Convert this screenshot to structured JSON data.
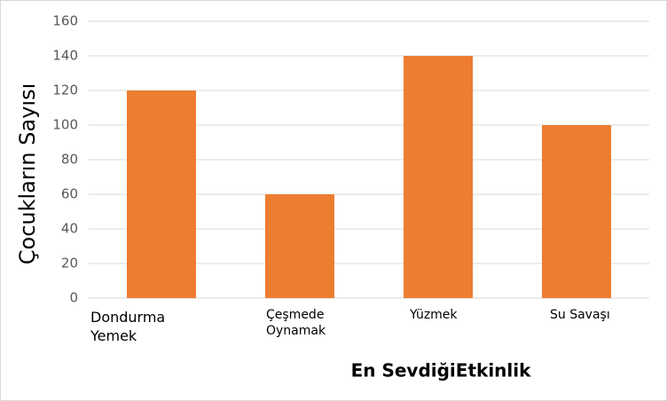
{
  "chart_data": {
    "type": "bar",
    "y_label": "Çocukların Sayısı",
    "x_label": "En SevdiğiEtkinlik",
    "categories": [
      "Dondurma Yemek",
      "Çeşmede Oynamak",
      "Yüzmek",
      "Su Savaşı"
    ],
    "values": [
      120,
      60,
      140,
      100
    ],
    "color": "#ed7d31",
    "ylim": [
      0,
      160
    ],
    "yticks": [
      0,
      20,
      40,
      60,
      80,
      100,
      120,
      140,
      160
    ],
    "grid": true
  }
}
